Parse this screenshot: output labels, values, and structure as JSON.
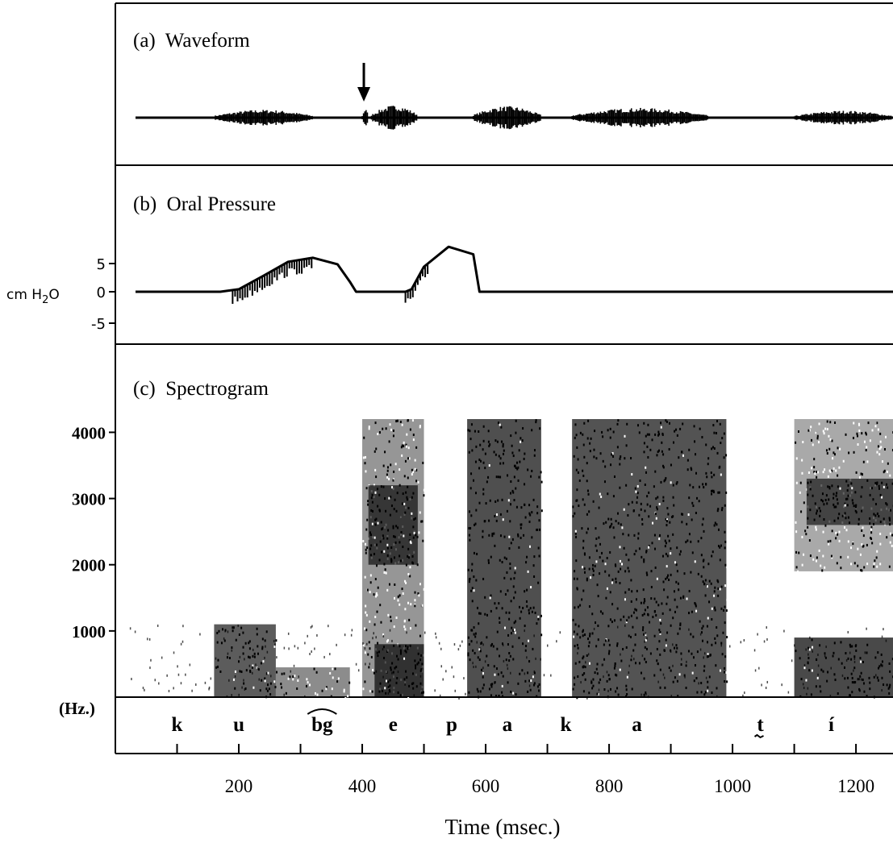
{
  "chart_data": [
    {
      "type": "line",
      "panel_label": "(a)  Waveform",
      "annotation": "arrow-down-marker",
      "arrow_time": 400,
      "segments": [
        {
          "start": 160,
          "end": 320,
          "amplitude": 0.45
        },
        {
          "start": 400,
          "end": 410,
          "amplitude": 0.5
        },
        {
          "start": 415,
          "end": 490,
          "amplitude": 0.7
        },
        {
          "start": 580,
          "end": 690,
          "amplitude": 0.65
        },
        {
          "start": 740,
          "end": 960,
          "amplitude": 0.55
        },
        {
          "start": 1100,
          "end": 1260,
          "amplitude": 0.4
        }
      ]
    },
    {
      "type": "line",
      "panel_label": "(b)  Oral Pressure",
      "ylabel_prefix": "cm H",
      "ylabel_sub": "2",
      "ylabel_suffix": "O",
      "yticks": [
        "5",
        "0",
        "-5"
      ],
      "ylim": [
        -5,
        5
      ],
      "x": [
        0,
        170,
        200,
        240,
        280,
        320,
        360,
        380,
        390,
        470,
        480,
        500,
        540,
        580,
        590,
        600,
        1260
      ],
      "y": [
        0,
        0,
        0.5,
        3.2,
        6.0,
        6.8,
        5.5,
        2.0,
        0,
        0,
        0.5,
        5.0,
        9.0,
        7.5,
        0,
        0,
        0
      ]
    },
    {
      "type": "heatmap",
      "panel_label": "(c)  Spectrogram",
      "ylabel": "(Hz.)",
      "yticks": [
        "4000",
        "3000",
        "2000",
        "1000"
      ],
      "ylim": [
        0,
        4200
      ],
      "dark_regions": [
        {
          "t0": 160,
          "t1": 260,
          "f0": 0,
          "f1": 1100,
          "density": 0.85
        },
        {
          "t0": 260,
          "t1": 380,
          "f0": 0,
          "f1": 450,
          "density": 0.6
        },
        {
          "t0": 400,
          "t1": 500,
          "f0": 0,
          "f1": 4200,
          "density": 0.55
        },
        {
          "t0": 410,
          "t1": 490,
          "f0": 2000,
          "f1": 3200,
          "density": 0.85
        },
        {
          "t0": 420,
          "t1": 500,
          "f0": 0,
          "f1": 800,
          "density": 0.9
        },
        {
          "t0": 570,
          "t1": 690,
          "f0": 0,
          "f1": 4200,
          "density": 0.92
        },
        {
          "t0": 740,
          "t1": 990,
          "f0": 0,
          "f1": 4200,
          "density": 0.9
        },
        {
          "t0": 1100,
          "t1": 1260,
          "f0": 0,
          "f1": 900,
          "density": 0.95
        },
        {
          "t0": 1100,
          "t1": 1260,
          "f0": 1900,
          "f1": 4200,
          "density": 0.45
        },
        {
          "t0": 1120,
          "t1": 1260,
          "f0": 2600,
          "f1": 3300,
          "density": 0.8
        }
      ]
    },
    {
      "type": "table",
      "segments": [
        {
          "label": "k",
          "time": 100
        },
        {
          "label": "u",
          "time": 200
        },
        {
          "label": "bg",
          "time": 335
        },
        {
          "label": "e",
          "time": 450
        },
        {
          "label": "p",
          "time": 545
        },
        {
          "label": "a",
          "time": 635
        },
        {
          "label": "k",
          "time": 730
        },
        {
          "label": "a",
          "time": 845
        },
        {
          "label": "t",
          "time": 1045
        },
        {
          "label": "í",
          "time": 1160
        }
      ],
      "xticks": [
        "200",
        "400",
        "600",
        "800",
        "1000",
        "1200"
      ],
      "xtick_values": [
        200,
        400,
        600,
        800,
        1000,
        1200
      ],
      "xlabel": "Time (msec.)",
      "xlim": [
        0,
        1260
      ]
    }
  ]
}
